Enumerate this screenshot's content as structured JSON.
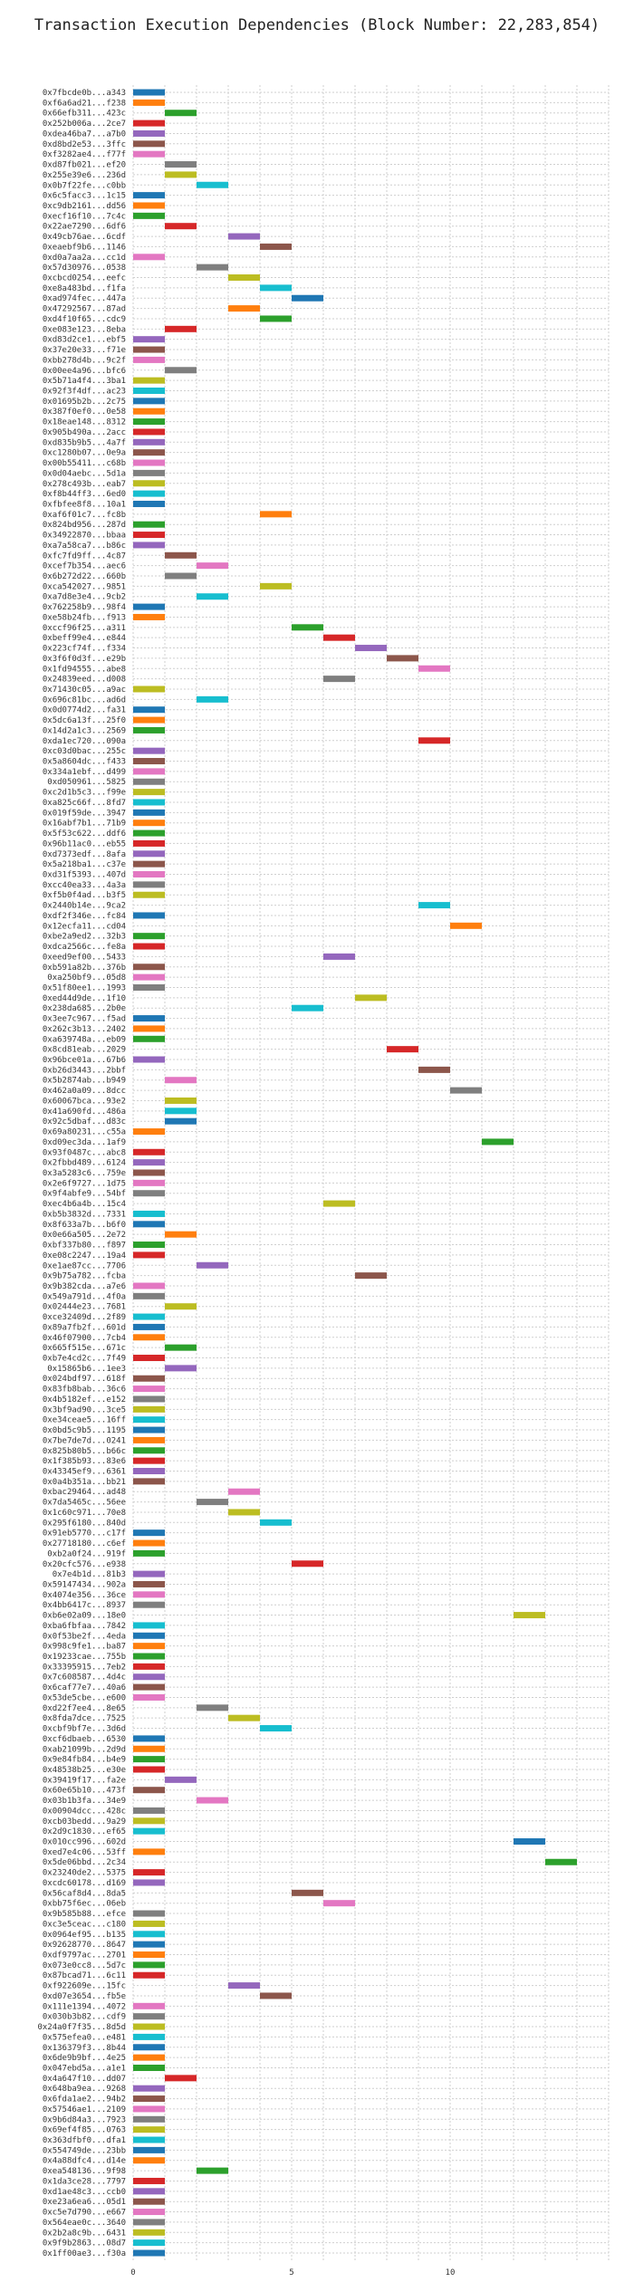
{
  "chart_data": {
    "type": "bar",
    "title": "Transaction Execution Dependencies (Block Number: 22,283,854)",
    "xlabel": "",
    "ylabel": "",
    "xlim": [
      0,
      15
    ],
    "xticks": [
      0,
      5,
      10
    ],
    "grid": true,
    "palette": [
      "#1f77b4",
      "#ff7f0e",
      "#2ca02c",
      "#d62728",
      "#9467bd",
      "#8c564b",
      "#e377c2",
      "#7f7f7f",
      "#bcbd22",
      "#17becf"
    ],
    "rows": [
      {
        "label": "0x7fbcde0b...a343",
        "start": 0
      },
      {
        "label": "0xf6a6ad21...f238",
        "start": 0
      },
      {
        "label": "0x66efb311...423c",
        "start": 1
      },
      {
        "label": "0x252b006a...2ce7",
        "start": 0
      },
      {
        "label": "0xdea46ba7...a7b0",
        "start": 0
      },
      {
        "label": "0xd8bd2e53...3ffc",
        "start": 0
      },
      {
        "label": "0xf3282ae4...f77f",
        "start": 0
      },
      {
        "label": "0xd87fb021...ef20",
        "start": 1
      },
      {
        "label": "0x255e39e6...236d",
        "start": 1
      },
      {
        "label": "0x0b7f22fe...c0bb",
        "start": 2
      },
      {
        "label": "0x6c5facc3...1c15",
        "start": 0
      },
      {
        "label": "0xc9db2161...dd56",
        "start": 0
      },
      {
        "label": "0xecf16f10...7c4c",
        "start": 0
      },
      {
        "label": "0x22ae7290...6df6",
        "start": 1
      },
      {
        "label": "0x49cb76ae...6cdf",
        "start": 3
      },
      {
        "label": "0xeaebf9b6...1146",
        "start": 4
      },
      {
        "label": "0xd0a7aa2a...cc1d",
        "start": 0
      },
      {
        "label": "0x57d30976...0538",
        "start": 2
      },
      {
        "label": "0xcbcd0254...eefc",
        "start": 3
      },
      {
        "label": "0xe8a483bd...f1fa",
        "start": 4
      },
      {
        "label": "0xad974fec...447a",
        "start": 5
      },
      {
        "label": "0x47292567...87ad",
        "start": 3
      },
      {
        "label": "0xd4f10f65...cdc9",
        "start": 4
      },
      {
        "label": "0xe083e123...8eba",
        "start": 1
      },
      {
        "label": "0xd83d2ce1...ebf5",
        "start": 0
      },
      {
        "label": "0x37e20e33...f71e",
        "start": 0
      },
      {
        "label": "0xbb278d4b...9c2f",
        "start": 0
      },
      {
        "label": "0x00ee4a96...bfc6",
        "start": 1
      },
      {
        "label": "0x5b71a4f4...3ba1",
        "start": 0
      },
      {
        "label": "0x92f3f4df...ac23",
        "start": 0
      },
      {
        "label": "0x01695b2b...2c75",
        "start": 0
      },
      {
        "label": "0x387f0ef0...0e58",
        "start": 0
      },
      {
        "label": "0x18eae148...8312",
        "start": 0
      },
      {
        "label": "0x905b490a...2acc",
        "start": 0
      },
      {
        "label": "0xd835b9b5...4a7f",
        "start": 0
      },
      {
        "label": "0xc1280b07...0e9a",
        "start": 0
      },
      {
        "label": "0x00b55411...c68b",
        "start": 0
      },
      {
        "label": "0x0d04aebc...5d1a",
        "start": 0
      },
      {
        "label": "0x278c493b...eab7",
        "start": 0
      },
      {
        "label": "0xf8b44ff3...6ed0",
        "start": 0
      },
      {
        "label": "0xfbfee8f8...10a1",
        "start": 0
      },
      {
        "label": "0xaf6f01c7...fc8b",
        "start": 4
      },
      {
        "label": "0x824bd956...287d",
        "start": 0
      },
      {
        "label": "0x34922870...bbaa",
        "start": 0
      },
      {
        "label": "0xa7a58ca7...b86c",
        "start": 0
      },
      {
        "label": "0xfc7fd9ff...4c87",
        "start": 1
      },
      {
        "label": "0xcef7b354...aec6",
        "start": 2
      },
      {
        "label": "0x6b272d22...660b",
        "start": 1
      },
      {
        "label": "0xca542027...9851",
        "start": 4
      },
      {
        "label": "0xa7d8e3e4...9cb2",
        "start": 2
      },
      {
        "label": "0x762258b9...98f4",
        "start": 0
      },
      {
        "label": "0xe58b24fb...f913",
        "start": 0
      },
      {
        "label": "0xccf96f25...a311",
        "start": 5
      },
      {
        "label": "0xbeff99e4...e844",
        "start": 6
      },
      {
        "label": "0x223cf74f...f334",
        "start": 7
      },
      {
        "label": "0x3f6f0d3f...e29b",
        "start": 8
      },
      {
        "label": "0x1fd94555...abe8",
        "start": 9
      },
      {
        "label": "0x24839eed...d008",
        "start": 6
      },
      {
        "label": "0x71430c05...a9ac",
        "start": 0
      },
      {
        "label": "0x696c81bc...ad6d",
        "start": 2
      },
      {
        "label": "0x0d0774d2...fa31",
        "start": 0
      },
      {
        "label": "0x5dc6a13f...25f0",
        "start": 0
      },
      {
        "label": "0x14d2a1c3...2569",
        "start": 0
      },
      {
        "label": "0xda1ec720...090a",
        "start": 9
      },
      {
        "label": "0xc03d0bac...255c",
        "start": 0
      },
      {
        "label": "0x5a8604dc...f433",
        "start": 0
      },
      {
        "label": "0x334a1ebf...d499",
        "start": 0
      },
      {
        "label": "0xd050961...5825",
        "start": 0
      },
      {
        "label": "0xc2d1b5c3...f99e",
        "start": 0
      },
      {
        "label": "0xa825c66f...8fd7",
        "start": 0
      },
      {
        "label": "0x019f59de...3947",
        "start": 0
      },
      {
        "label": "0x16abf7b1...71b9",
        "start": 0
      },
      {
        "label": "0x5f53c622...ddf6",
        "start": 0
      },
      {
        "label": "0x96b11ac0...eb55",
        "start": 0
      },
      {
        "label": "0xd7373edf...8afa",
        "start": 0
      },
      {
        "label": "0x5a218ba1...c37e",
        "start": 0
      },
      {
        "label": "0xd31f5393...407d",
        "start": 0
      },
      {
        "label": "0xcc40ea33...4a3a",
        "start": 0
      },
      {
        "label": "0xf5b0f4ad...b3f5",
        "start": 0
      },
      {
        "label": "0x2440b14e...9ca2",
        "start": 9
      },
      {
        "label": "0xdf2f346e...fc84",
        "start": 0
      },
      {
        "label": "0x12ecfa11...cd04",
        "start": 10
      },
      {
        "label": "0xbe2a9ed2...32b3",
        "start": 0
      },
      {
        "label": "0xdca2566c...fe8a",
        "start": 0
      },
      {
        "label": "0xeed9ef00...5433",
        "start": 6
      },
      {
        "label": "0xb591a82b...376b",
        "start": 0
      },
      {
        "label": "0xa250bf9...05d8",
        "start": 0
      },
      {
        "label": "0x51f80ee1...1993",
        "start": 0
      },
      {
        "label": "0xed44d9de...1f10",
        "start": 7
      },
      {
        "label": "0x238da685...2b0e",
        "start": 5
      },
      {
        "label": "0x3ee7c967...f5ad",
        "start": 0
      },
      {
        "label": "0x262c3b13...2402",
        "start": 0
      },
      {
        "label": "0xa639748a...eb09",
        "start": 0
      },
      {
        "label": "0x8cd81eab...2029",
        "start": 8
      },
      {
        "label": "0x96bce01a...67b6",
        "start": 0
      },
      {
        "label": "0xb26d3443...2bbf",
        "start": 9
      },
      {
        "label": "0x5b2874ab...b949",
        "start": 1
      },
      {
        "label": "0x462a0a09...8dcc",
        "start": 10
      },
      {
        "label": "0x60067bca...93e2",
        "start": 1
      },
      {
        "label": "0x41a690fd...486a",
        "start": 1
      },
      {
        "label": "0x92c5dbaf...d83c",
        "start": 1
      },
      {
        "label": "0x69a80231...c55a",
        "start": 0
      },
      {
        "label": "0xd09ec3da...1af9",
        "start": 11
      },
      {
        "label": "0x93f0487c...abc8",
        "start": 0
      },
      {
        "label": "0x2fbbd489...6124",
        "start": 0
      },
      {
        "label": "0x3a5283c6...759e",
        "start": 0
      },
      {
        "label": "0x2e6f9727...1d75",
        "start": 0
      },
      {
        "label": "0x9f4abfe9...54bf",
        "start": 0
      },
      {
        "label": "0xec4b6a4b...15c4",
        "start": 6
      },
      {
        "label": "0xb5b3832d...7331",
        "start": 0
      },
      {
        "label": "0x8f633a7b...b6f0",
        "start": 0
      },
      {
        "label": "0x0e66a505...2e72",
        "start": 1
      },
      {
        "label": "0xbf337b80...f897",
        "start": 0
      },
      {
        "label": "0xe08c2247...19a4",
        "start": 0
      },
      {
        "label": "0xe1ae87cc...7706",
        "start": 2
      },
      {
        "label": "0x9b75a782...fcba",
        "start": 7
      },
      {
        "label": "0x9b382cda...a7e6",
        "start": 0
      },
      {
        "label": "0x549a791d...4f0a",
        "start": 0
      },
      {
        "label": "0x02444e23...7681",
        "start": 1
      },
      {
        "label": "0xce32409d...2f89",
        "start": 0
      },
      {
        "label": "0x89a7fb2f...601d",
        "start": 0
      },
      {
        "label": "0x46f07900...7cb4",
        "start": 0
      },
      {
        "label": "0x665f515e...671c",
        "start": 1
      },
      {
        "label": "0xb7e4cd2c...7f49",
        "start": 0
      },
      {
        "label": "0x15865b6...1ee3",
        "start": 1
      },
      {
        "label": "0x024bdf97...618f",
        "start": 0
      },
      {
        "label": "0x83fb8bab...36c6",
        "start": 0
      },
      {
        "label": "0x4b5182ef...e152",
        "start": 0
      },
      {
        "label": "0x3bf9ad90...3ce5",
        "start": 0
      },
      {
        "label": "0xe34ceae5...16ff",
        "start": 0
      },
      {
        "label": "0x0bd5c9b5...1195",
        "start": 0
      },
      {
        "label": "0x7be7de7d...0241",
        "start": 0
      },
      {
        "label": "0x825b80b5...b66c",
        "start": 0
      },
      {
        "label": "0x1f385b93...83e6",
        "start": 0
      },
      {
        "label": "0x43345ef9...6361",
        "start": 0
      },
      {
        "label": "0x0a4b351a...bb21",
        "start": 0
      },
      {
        "label": "0xbac29464...ad48",
        "start": 3
      },
      {
        "label": "0x7da5465c...56ee",
        "start": 2
      },
      {
        "label": "0x1c60c971...70e8",
        "start": 3
      },
      {
        "label": "0x295f6180...840d",
        "start": 4
      },
      {
        "label": "0x91eb5770...c17f",
        "start": 0
      },
      {
        "label": "0x27718180...c6ef",
        "start": 0
      },
      {
        "label": "0xb2a0f24...919f",
        "start": 0
      },
      {
        "label": "0x20cfc576...e938",
        "start": 5
      },
      {
        "label": "0x7e4b1d...81b3",
        "start": 0
      },
      {
        "label": "0x59147434...902a",
        "start": 0
      },
      {
        "label": "0x4074e356...36ce",
        "start": 0
      },
      {
        "label": "0x4bb6417c...8937",
        "start": 0
      },
      {
        "label": "0xb6e02a09...18e0",
        "start": 12
      },
      {
        "label": "0xba6fbfaa...7842",
        "start": 0
      },
      {
        "label": "0x0f53be2f...4eda",
        "start": 0
      },
      {
        "label": "0x998c9fe1...ba87",
        "start": 0
      },
      {
        "label": "0x19233cae...755b",
        "start": 0
      },
      {
        "label": "0x33395915...7eb2",
        "start": 0
      },
      {
        "label": "0x7c608587...4d4c",
        "start": 0
      },
      {
        "label": "0x6caf77e7...40a6",
        "start": 0
      },
      {
        "label": "0x53de5cbe...e600",
        "start": 0
      },
      {
        "label": "0xd22f7ee4...8e65",
        "start": 2
      },
      {
        "label": "0x8fda7dce...7525",
        "start": 3
      },
      {
        "label": "0xcbf9bf7e...3d6d",
        "start": 4
      },
      {
        "label": "0xcf6dbaeb...6530",
        "start": 0
      },
      {
        "label": "0xab21099b...2d9d",
        "start": 0
      },
      {
        "label": "0x9e84fb84...b4e9",
        "start": 0
      },
      {
        "label": "0x48538b25...e30e",
        "start": 0
      },
      {
        "label": "0x39419f17...fa2e",
        "start": 1
      },
      {
        "label": "0x60e65b10...473f",
        "start": 0
      },
      {
        "label": "0x03b1b3fa...34e9",
        "start": 2
      },
      {
        "label": "0x00904dcc...428c",
        "start": 0
      },
      {
        "label": "0xcb03bedd...9a29",
        "start": 0
      },
      {
        "label": "0x2d9c1830...ef65",
        "start": 0
      },
      {
        "label": "0x010cc996...602d",
        "start": 12
      },
      {
        "label": "0xed7e4c06...53ff",
        "start": 0
      },
      {
        "label": "0x5de06bbd...2c34",
        "start": 13
      },
      {
        "label": "0x23240de2...5375",
        "start": 0
      },
      {
        "label": "0xcdc60178...d169",
        "start": 0
      },
      {
        "label": "0x56caf8d4...8da5",
        "start": 5
      },
      {
        "label": "0xbb75f6ec...06eb",
        "start": 6
      },
      {
        "label": "0x9b585b88...efce",
        "start": 0
      },
      {
        "label": "0xc3e5ceac...c180",
        "start": 0
      },
      {
        "label": "0x0964ef95...b135",
        "start": 0
      },
      {
        "label": "0x92628770...8647",
        "start": 0
      },
      {
        "label": "0xdf9797ac...2701",
        "start": 0
      },
      {
        "label": "0x073e0cc8...5d7c",
        "start": 0
      },
      {
        "label": "0x87bcad71...6c11",
        "start": 0
      },
      {
        "label": "0xf922609e...15fc",
        "start": 3
      },
      {
        "label": "0xd07e3654...fb5e",
        "start": 4
      },
      {
        "label": "0x111e1394...4072",
        "start": 0
      },
      {
        "label": "0x030b3b82...cdf9",
        "start": 0
      },
      {
        "label": "0x24a0f7f35...8d5d",
        "start": 0
      },
      {
        "label": "0x575efea0...e481",
        "start": 0
      },
      {
        "label": "0x136379f3...8b44",
        "start": 0
      },
      {
        "label": "0x6de9b9bf...4e25",
        "start": 0
      },
      {
        "label": "0x047ebd5a...a1e1",
        "start": 0
      },
      {
        "label": "0x4a647f10...dd07",
        "start": 1
      },
      {
        "label": "0x648ba9ea...9268",
        "start": 0
      },
      {
        "label": "0x6fda1ae2...94b2",
        "start": 0
      },
      {
        "label": "0x57546ae1...2109",
        "start": 0
      },
      {
        "label": "0x9b6d84a3...7923",
        "start": 0
      },
      {
        "label": "0x69ef4f85...0763",
        "start": 0
      },
      {
        "label": "0x363dfbf0...dfa1",
        "start": 0
      },
      {
        "label": "0x554749de...23bb",
        "start": 0
      },
      {
        "label": "0x4a88dfc4...d14e",
        "start": 0
      },
      {
        "label": "0xea548136...9f98",
        "start": 2
      },
      {
        "label": "0x1da3ce28...7797",
        "start": 0
      },
      {
        "label": "0xd1ae48c3...ccb0",
        "start": 0
      },
      {
        "label": "0xe23a6ea6...05d1",
        "start": 0
      },
      {
        "label": "0xc5e7d790...e667",
        "start": 0
      },
      {
        "label": "0x564eae0c...3640",
        "start": 0
      },
      {
        "label": "0x2b2a8c9b...6431",
        "start": 0
      },
      {
        "label": "0x9f9b2863...08d7",
        "start": 0
      },
      {
        "label": "0x1ff00ae3...f30a",
        "start": 0
      }
    ]
  }
}
